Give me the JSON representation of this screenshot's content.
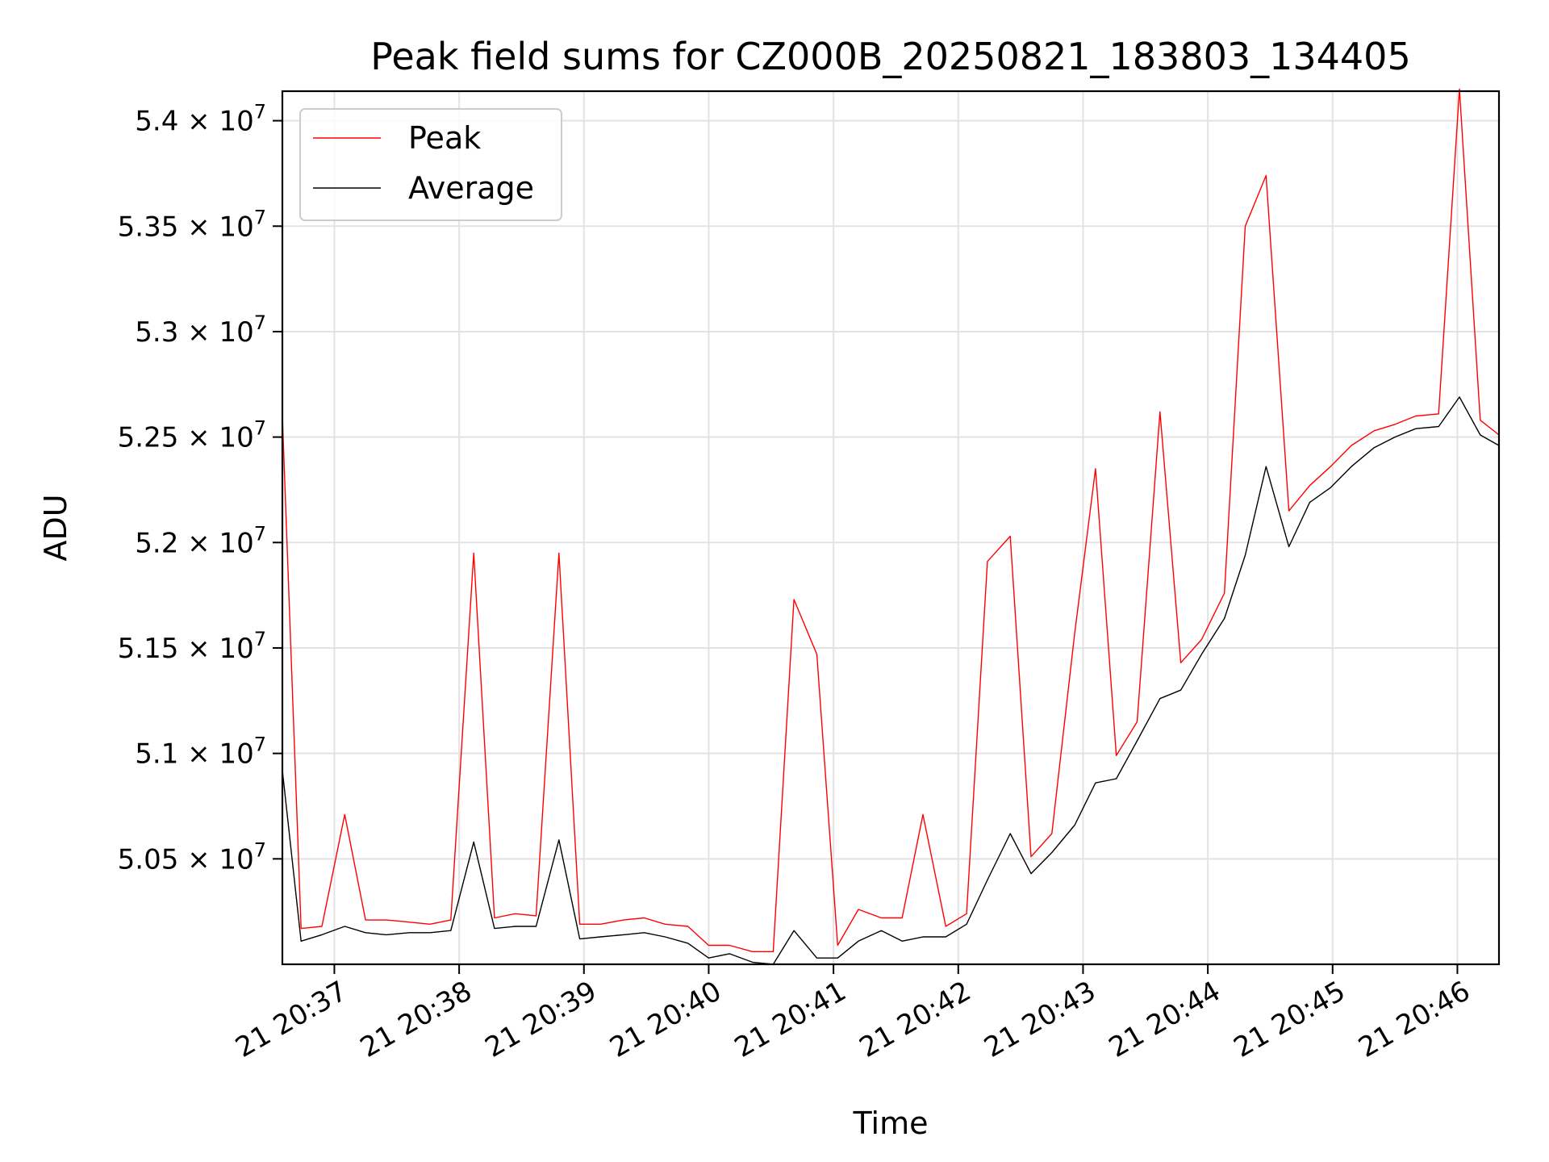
{
  "chart_data": {
    "type": "line",
    "title": "Peak field sums for CZ000B_20250821_183803_134405",
    "xlabel": "Time",
    "ylabel": "ADU",
    "grid": true,
    "legend_position": "top-left",
    "xlim": [
      "20:36:35",
      "20:46:20"
    ],
    "ylim": [
      50000000,
      54140000
    ],
    "x_ticks": [
      "20:37",
      "20:38",
      "20:39",
      "20:40",
      "20:41",
      "20:42",
      "20:43",
      "20:44",
      "20:45",
      "20:46"
    ],
    "x_tick_labels": [
      "21 20:37",
      "21 20:38",
      "21 20:39",
      "21 20:40",
      "21 20:41",
      "21 20:42",
      "21 20:43",
      "21 20:44",
      "21 20:45",
      "21 20:46"
    ],
    "y_ticks": [
      50500000,
      51000000,
      51500000,
      52000000,
      52500000,
      53000000,
      53500000,
      54000000
    ],
    "y_tick_mantissas": [
      "5.05",
      "5.1",
      "5.15",
      "5.2",
      "5.25",
      "5.3",
      "5.35",
      "5.4"
    ],
    "y_tick_suffix": "× 10",
    "y_tick_exponent": "7",
    "series": [
      {
        "name": "Peak",
        "color": "#ff0000",
        "points": [
          [
            "20:36:35",
            52600000
          ],
          [
            "20:36:44",
            50170000
          ],
          [
            "20:36:54",
            50180000
          ],
          [
            "20:37:05",
            50710000
          ],
          [
            "20:37:15",
            50210000
          ],
          [
            "20:37:25",
            50210000
          ],
          [
            "20:37:36",
            50200000
          ],
          [
            "20:37:46",
            50190000
          ],
          [
            "20:37:56",
            50210000
          ],
          [
            "20:38:07",
            51950000
          ],
          [
            "20:38:17",
            50220000
          ],
          [
            "20:38:27",
            50240000
          ],
          [
            "20:38:37",
            50230000
          ],
          [
            "20:38:48",
            51950000
          ],
          [
            "20:38:58",
            50190000
          ],
          [
            "20:39:08",
            50190000
          ],
          [
            "20:39:19",
            50210000
          ],
          [
            "20:39:29",
            50220000
          ],
          [
            "20:39:39",
            50190000
          ],
          [
            "20:39:50",
            50180000
          ],
          [
            "20:40:00",
            50090000
          ],
          [
            "20:40:10",
            50090000
          ],
          [
            "20:40:21",
            50060000
          ],
          [
            "20:40:31",
            50060000
          ],
          [
            "20:40:41",
            51730000
          ],
          [
            "20:40:52",
            51470000
          ],
          [
            "20:41:02",
            50090000
          ],
          [
            "20:41:12",
            50260000
          ],
          [
            "20:41:23",
            50220000
          ],
          [
            "20:41:33",
            50220000
          ],
          [
            "20:41:43",
            50710000
          ],
          [
            "20:41:54",
            50180000
          ],
          [
            "20:42:04",
            50240000
          ],
          [
            "20:42:14",
            51910000
          ],
          [
            "20:42:25",
            52030000
          ],
          [
            "20:42:35",
            50510000
          ],
          [
            "20:42:45",
            50620000
          ],
          [
            "20:42:56",
            51570000
          ],
          [
            "20:43:06",
            52350000
          ],
          [
            "20:43:16",
            50990000
          ],
          [
            "20:43:26",
            51150000
          ],
          [
            "20:43:37",
            52620000
          ],
          [
            "20:43:47",
            51430000
          ],
          [
            "20:43:57",
            51540000
          ],
          [
            "20:44:08",
            51760000
          ],
          [
            "20:44:18",
            53500000
          ],
          [
            "20:44:28",
            53740000
          ],
          [
            "20:44:39",
            52150000
          ],
          [
            "20:44:49",
            52270000
          ],
          [
            "20:44:59",
            52360000
          ],
          [
            "20:45:09",
            52460000
          ],
          [
            "20:45:20",
            52530000
          ],
          [
            "20:45:30",
            52560000
          ],
          [
            "20:45:40",
            52600000
          ],
          [
            "20:45:51",
            52610000
          ],
          [
            "20:46:01",
            54150000
          ],
          [
            "20:46:11",
            52580000
          ],
          [
            "20:46:20",
            52510000
          ]
        ]
      },
      {
        "name": "Average",
        "color": "#000000",
        "points": [
          [
            "20:36:35",
            50920000
          ],
          [
            "20:36:44",
            50110000
          ],
          [
            "20:36:54",
            50140000
          ],
          [
            "20:37:05",
            50180000
          ],
          [
            "20:37:15",
            50150000
          ],
          [
            "20:37:25",
            50140000
          ],
          [
            "20:37:36",
            50150000
          ],
          [
            "20:37:46",
            50150000
          ],
          [
            "20:37:56",
            50160000
          ],
          [
            "20:38:07",
            50580000
          ],
          [
            "20:38:17",
            50170000
          ],
          [
            "20:38:27",
            50180000
          ],
          [
            "20:38:37",
            50180000
          ],
          [
            "20:38:48",
            50590000
          ],
          [
            "20:38:58",
            50120000
          ],
          [
            "20:39:08",
            50130000
          ],
          [
            "20:39:19",
            50140000
          ],
          [
            "20:39:29",
            50150000
          ],
          [
            "20:39:39",
            50130000
          ],
          [
            "20:39:50",
            50100000
          ],
          [
            "20:40:00",
            50030000
          ],
          [
            "20:40:10",
            50050000
          ],
          [
            "20:40:21",
            50010000
          ],
          [
            "20:40:31",
            50000000
          ],
          [
            "20:40:41",
            50160000
          ],
          [
            "20:40:52",
            50030000
          ],
          [
            "20:41:02",
            50030000
          ],
          [
            "20:41:12",
            50110000
          ],
          [
            "20:41:23",
            50160000
          ],
          [
            "20:41:33",
            50110000
          ],
          [
            "20:41:43",
            50130000
          ],
          [
            "20:41:54",
            50130000
          ],
          [
            "20:42:04",
            50190000
          ],
          [
            "20:42:14",
            50400000
          ],
          [
            "20:42:25",
            50620000
          ],
          [
            "20:42:35",
            50430000
          ],
          [
            "20:42:45",
            50530000
          ],
          [
            "20:42:56",
            50660000
          ],
          [
            "20:43:06",
            50860000
          ],
          [
            "20:43:16",
            50880000
          ],
          [
            "20:43:26",
            51060000
          ],
          [
            "20:43:37",
            51260000
          ],
          [
            "20:43:47",
            51300000
          ],
          [
            "20:43:57",
            51470000
          ],
          [
            "20:44:08",
            51640000
          ],
          [
            "20:44:18",
            51940000
          ],
          [
            "20:44:28",
            52360000
          ],
          [
            "20:44:39",
            51980000
          ],
          [
            "20:44:49",
            52190000
          ],
          [
            "20:44:59",
            52260000
          ],
          [
            "20:45:09",
            52360000
          ],
          [
            "20:45:20",
            52450000
          ],
          [
            "20:45:30",
            52500000
          ],
          [
            "20:45:40",
            52540000
          ],
          [
            "20:45:51",
            52550000
          ],
          [
            "20:46:01",
            52690000
          ],
          [
            "20:46:11",
            52510000
          ],
          [
            "20:46:20",
            52460000
          ]
        ]
      }
    ]
  }
}
